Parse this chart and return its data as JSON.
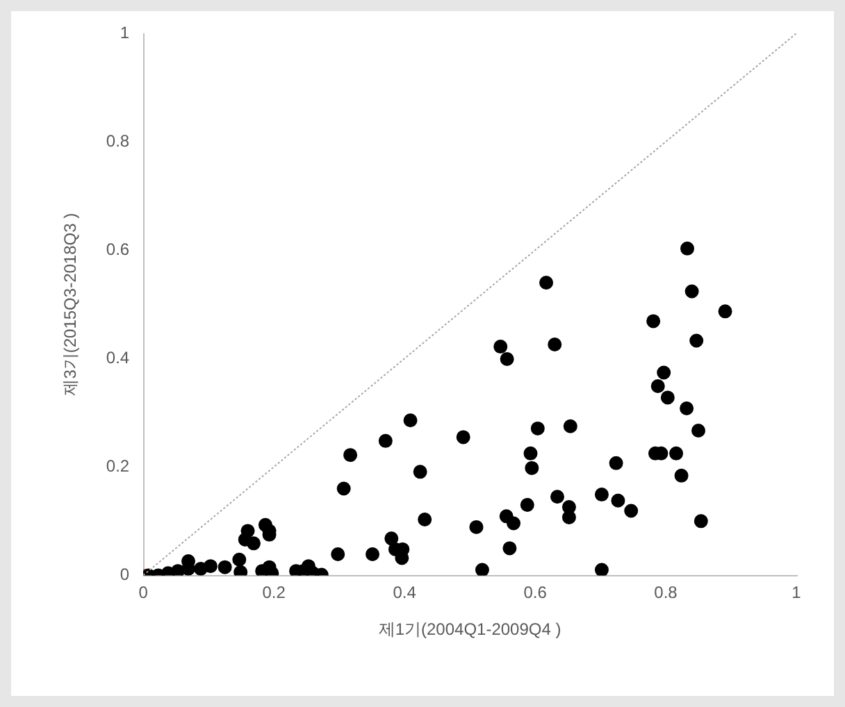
{
  "chart_data": {
    "type": "scatter",
    "xlabel": "제1기(2004Q1-2009Q4 )",
    "ylabel": "제3기(2015Q3-2018Q3 )",
    "xlim": [
      0,
      1
    ],
    "ylim": [
      0,
      1
    ],
    "xticks": [
      0,
      0.2,
      0.4,
      0.6,
      0.8,
      1
    ],
    "yticks": [
      0,
      0.2,
      0.4,
      0.6,
      0.8,
      1
    ],
    "grid": false,
    "legend": false,
    "marker": "circle",
    "series": [
      {
        "type": "line",
        "color": "#a6a6a6",
        "line_style": "dotted",
        "marker": "none",
        "x": [
          0,
          1
        ],
        "values": [
          0,
          1
        ]
      },
      {
        "color": "#000000",
        "x": [
          0.833,
          0.84,
          0.891,
          0.847,
          0.797,
          0.803,
          0.832,
          0.85,
          0.793,
          0.816,
          0.824,
          0.854,
          0.617,
          0.781,
          0.547,
          0.63,
          0.557,
          0.788,
          0.409,
          0.371,
          0.49,
          0.604,
          0.654,
          0.593,
          0.595,
          0.784,
          0.724,
          0.424,
          0.702,
          0.634,
          0.727,
          0.747,
          0.652,
          0.652,
          0.588,
          0.556,
          0.567,
          0.431,
          0.51,
          0.561,
          0.519,
          0.702,
          0.38,
          0.386,
          0.397,
          0.396,
          0.317,
          0.307,
          0.298,
          0.351,
          0.16,
          0.156,
          0.169,
          0.187,
          0.193,
          0.193,
          0.147,
          0.149,
          0.125,
          0.103,
          0.088,
          0.069,
          0.069,
          0.053,
          0.038,
          0.023,
          0.008,
          0.182,
          0.197,
          0.193,
          0.234,
          0.253,
          0.26,
          0.273,
          0.245
        ],
        "values": [
          0.603,
          0.524,
          0.487,
          0.433,
          0.374,
          0.328,
          0.308,
          0.267,
          0.225,
          0.225,
          0.184,
          0.1,
          0.54,
          0.469,
          0.422,
          0.426,
          0.399,
          0.349,
          0.286,
          0.248,
          0.255,
          0.271,
          0.275,
          0.225,
          0.198,
          0.225,
          0.207,
          0.191,
          0.149,
          0.145,
          0.138,
          0.119,
          0.126,
          0.107,
          0.13,
          0.109,
          0.096,
          0.103,
          0.089,
          0.05,
          0.01,
          0.01,
          0.068,
          0.048,
          0.048,
          0.032,
          0.222,
          0.16,
          0.039,
          0.039,
          0.082,
          0.066,
          0.059,
          0.093,
          0.082,
          0.075,
          0.029,
          0.006,
          0.015,
          0.017,
          0.012,
          0.026,
          0.012,
          0.008,
          0.004,
          0.0,
          0.0,
          0.008,
          0.004,
          0.015,
          0.008,
          0.017,
          0.004,
          0.001,
          0.008
        ]
      },
      {
        "color": "#ed7d31",
        "x": [
          0
        ],
        "values": [
          0
        ]
      }
    ]
  }
}
